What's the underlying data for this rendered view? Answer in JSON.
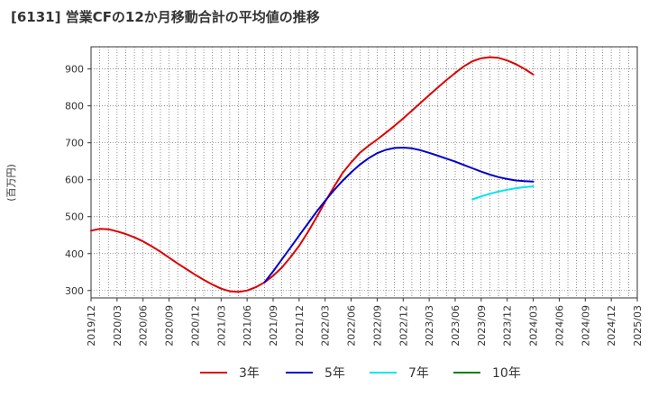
{
  "chart_data": {
    "type": "line",
    "title": "[6131]  営業CFの12か月移動合計の平均値の推移",
    "xlabel": "",
    "ylabel": "(百万円)",
    "ylim": [
      280,
      960
    ],
    "yticks": [
      300,
      400,
      500,
      600,
      700,
      800,
      900
    ],
    "x_ticks": [
      "2019/12",
      "2020/03",
      "2020/06",
      "2020/09",
      "2020/12",
      "2021/03",
      "2021/06",
      "2021/09",
      "2021/12",
      "2022/03",
      "2022/06",
      "2022/09",
      "2022/12",
      "2023/03",
      "2023/06",
      "2023/09",
      "2023/12",
      "2024/03",
      "2024/06",
      "2024/09",
      "2024/12",
      "2025/03"
    ],
    "grid": true,
    "legend_position": "bottom",
    "series": [
      {
        "name": "3年",
        "color": "#dd0000",
        "x": [
          "2019/12",
          "2020/01",
          "2020/02",
          "2020/03",
          "2020/04",
          "2020/05",
          "2020/06",
          "2020/07",
          "2020/08",
          "2020/09",
          "2020/10",
          "2020/11",
          "2020/12",
          "2021/01",
          "2021/02",
          "2021/03",
          "2021/04",
          "2021/05",
          "2021/06",
          "2021/07",
          "2021/08",
          "2021/09",
          "2021/10",
          "2021/11",
          "2021/12",
          "2022/01",
          "2022/02",
          "2022/03",
          "2022/04",
          "2022/05",
          "2022/06",
          "2022/07",
          "2022/08",
          "2022/09",
          "2022/10",
          "2022/11",
          "2022/12",
          "2023/01",
          "2023/02",
          "2023/03",
          "2023/04",
          "2023/05",
          "2023/06",
          "2023/07",
          "2023/08",
          "2023/09",
          "2023/10",
          "2023/11",
          "2023/12",
          "2024/01",
          "2024/02",
          "2024/03"
        ],
        "values": [
          462,
          467,
          466,
          460,
          453,
          444,
          433,
          420,
          405,
          389,
          373,
          358,
          343,
          329,
          316,
          305,
          298,
          296,
          300,
          309,
          322,
          340,
          362,
          390,
          421,
          458,
          498,
          540,
          580,
          618,
          647,
          673,
          692,
          709,
          727,
          746,
          766,
          787,
          808,
          829,
          850,
          870,
          889,
          907,
          921,
          929,
          932,
          930,
          923,
          913,
          900,
          885
        ]
      },
      {
        "name": "5年",
        "color": "#0000cc",
        "x": [
          "2021/08",
          "2021/09",
          "2021/10",
          "2021/11",
          "2021/12",
          "2022/01",
          "2022/02",
          "2022/03",
          "2022/04",
          "2022/05",
          "2022/06",
          "2022/07",
          "2022/08",
          "2022/09",
          "2022/10",
          "2022/11",
          "2022/12",
          "2023/01",
          "2023/02",
          "2023/03",
          "2023/04",
          "2023/05",
          "2023/06",
          "2023/07",
          "2023/08",
          "2023/09",
          "2023/10",
          "2023/11",
          "2023/12",
          "2024/01",
          "2024/02",
          "2024/03"
        ],
        "values": [
          322,
          352,
          384,
          416,
          449,
          481,
          513,
          543,
          571,
          597,
          620,
          641,
          658,
          672,
          681,
          686,
          687,
          685,
          680,
          673,
          665,
          657,
          649,
          640,
          631,
          622,
          614,
          607,
          602,
          598,
          596,
          595
        ]
      },
      {
        "name": "7年",
        "color": "#00e5ee",
        "x": [
          "2023/08",
          "2023/09",
          "2023/10",
          "2023/11",
          "2023/12",
          "2024/01",
          "2024/02",
          "2024/03"
        ],
        "values": [
          547,
          555,
          562,
          568,
          573,
          577,
          580,
          582
        ]
      },
      {
        "name": "10年",
        "color": "#008000",
        "x": [],
        "values": []
      }
    ]
  }
}
